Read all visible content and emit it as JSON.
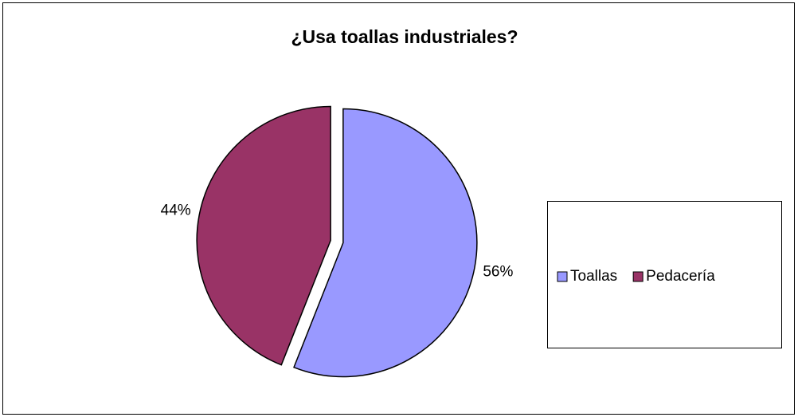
{
  "chart_data": {
    "type": "pie",
    "title": "¿Usa toallas industriales?",
    "categories": [
      "Toallas",
      "Pedacería"
    ],
    "values": [
      56,
      44
    ],
    "value_labels": [
      "56%",
      "44%"
    ],
    "colors": [
      "#9999ff",
      "#993366"
    ],
    "legend": "right"
  }
}
